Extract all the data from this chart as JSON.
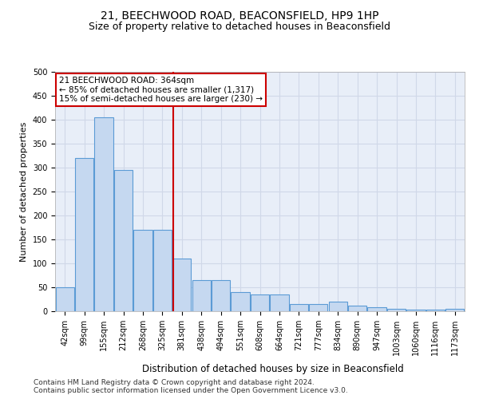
{
  "title": "21, BEECHWOOD ROAD, BEACONSFIELD, HP9 1HP",
  "subtitle": "Size of property relative to detached houses in Beaconsfield",
  "xlabel": "Distribution of detached houses by size in Beaconsfield",
  "ylabel": "Number of detached properties",
  "categories": [
    "42sqm",
    "99sqm",
    "155sqm",
    "212sqm",
    "268sqm",
    "325sqm",
    "381sqm",
    "438sqm",
    "494sqm",
    "551sqm",
    "608sqm",
    "664sqm",
    "721sqm",
    "777sqm",
    "834sqm",
    "890sqm",
    "947sqm",
    "1003sqm",
    "1060sqm",
    "1116sqm",
    "1173sqm"
  ],
  "values": [
    50,
    320,
    405,
    295,
    170,
    170,
    110,
    65,
    65,
    40,
    35,
    35,
    15,
    15,
    20,
    12,
    8,
    5,
    3,
    3,
    5
  ],
  "bar_color": "#c5d8f0",
  "bar_edgecolor": "#5b9bd5",
  "bar_linewidth": 0.8,
  "grid_color": "#d0d8e8",
  "bg_color": "#e8eef8",
  "vline_x": 5.55,
  "vline_color": "#cc0000",
  "vline_linewidth": 1.5,
  "annotation_text": "21 BEECHWOOD ROAD: 364sqm\n← 85% of detached houses are smaller (1,317)\n15% of semi-detached houses are larger (230) →",
  "annotation_box_edgecolor": "#cc0000",
  "annotation_box_facecolor": "#ffffff",
  "footnote1": "Contains HM Land Registry data © Crown copyright and database right 2024.",
  "footnote2": "Contains public sector information licensed under the Open Government Licence v3.0.",
  "ylim": [
    0,
    500
  ],
  "yticks": [
    0,
    50,
    100,
    150,
    200,
    250,
    300,
    350,
    400,
    450,
    500
  ],
  "title_fontsize": 10,
  "subtitle_fontsize": 9,
  "xlabel_fontsize": 8.5,
  "ylabel_fontsize": 8,
  "tick_fontsize": 7,
  "footnote_fontsize": 6.5,
  "annotation_fontsize": 7.5
}
